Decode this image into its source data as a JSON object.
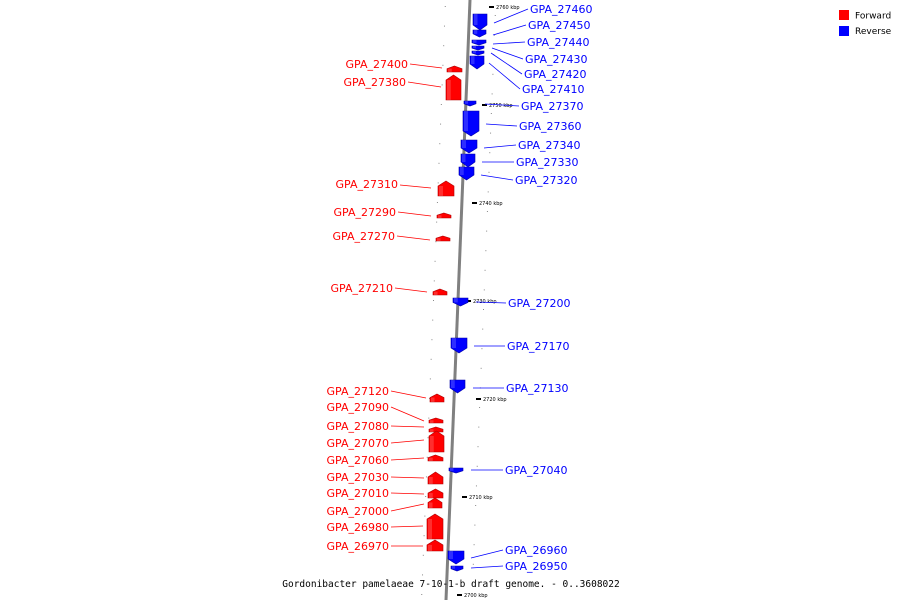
{
  "caption": "Gordonibacter pamelaeae 7-10-1-b draft genome. - 0..3608022",
  "colors": {
    "forward": "#ff0000",
    "reverse": "#0000ff",
    "backbone": "#808080"
  },
  "legend": [
    {
      "label": "Forward",
      "strand": "forward"
    },
    {
      "label": "Reverse",
      "strand": "reverse"
    }
  ],
  "kbp_marks": [
    {
      "label": "2760 kbp",
      "position_kbp": 2760
    },
    {
      "label": "2750 kbp",
      "position_kbp": 2750
    },
    {
      "label": "2740 kbp",
      "position_kbp": 2740
    },
    {
      "label": "2730 kbp",
      "position_kbp": 2730
    },
    {
      "label": "2720 kbp",
      "position_kbp": 2720
    },
    {
      "label": "2710 kbp",
      "position_kbp": 2710
    },
    {
      "label": "2700 kbp",
      "position_kbp": 2700
    }
  ],
  "genes": [
    {
      "label": "GPA_27460",
      "strand": "reverse"
    },
    {
      "label": "GPA_27450",
      "strand": "reverse"
    },
    {
      "label": "GPA_27440",
      "strand": "reverse"
    },
    {
      "label": "GPA_27430",
      "strand": "reverse"
    },
    {
      "label": "GPA_27420",
      "strand": "reverse"
    },
    {
      "label": "GPA_27410",
      "strand": "reverse"
    },
    {
      "label": "GPA_27400",
      "strand": "forward"
    },
    {
      "label": "GPA_27380",
      "strand": "forward"
    },
    {
      "label": "GPA_27370",
      "strand": "reverse"
    },
    {
      "label": "GPA_27360",
      "strand": "reverse"
    },
    {
      "label": "GPA_27340",
      "strand": "reverse"
    },
    {
      "label": "GPA_27330",
      "strand": "reverse"
    },
    {
      "label": "GPA_27320",
      "strand": "reverse"
    },
    {
      "label": "GPA_27310",
      "strand": "forward"
    },
    {
      "label": "GPA_27290",
      "strand": "forward"
    },
    {
      "label": "GPA_27270",
      "strand": "forward"
    },
    {
      "label": "GPA_27210",
      "strand": "forward"
    },
    {
      "label": "GPA_27200",
      "strand": "reverse"
    },
    {
      "label": "GPA_27170",
      "strand": "reverse"
    },
    {
      "label": "GPA_27130",
      "strand": "reverse"
    },
    {
      "label": "GPA_27120",
      "strand": "forward"
    },
    {
      "label": "GPA_27090",
      "strand": "forward"
    },
    {
      "label": "GPA_27080",
      "strand": "forward"
    },
    {
      "label": "GPA_27070",
      "strand": "forward"
    },
    {
      "label": "GPA_27060",
      "strand": "forward"
    },
    {
      "label": "GPA_27040",
      "strand": "reverse"
    },
    {
      "label": "GPA_27030",
      "strand": "forward"
    },
    {
      "label": "GPA_27010",
      "strand": "forward"
    },
    {
      "label": "GPA_27000",
      "strand": "forward"
    },
    {
      "label": "GPA_26980",
      "strand": "forward"
    },
    {
      "label": "GPA_26970",
      "strand": "forward"
    },
    {
      "label": "GPA_26960",
      "strand": "reverse"
    },
    {
      "label": "GPA_26950",
      "strand": "reverse"
    }
  ]
}
